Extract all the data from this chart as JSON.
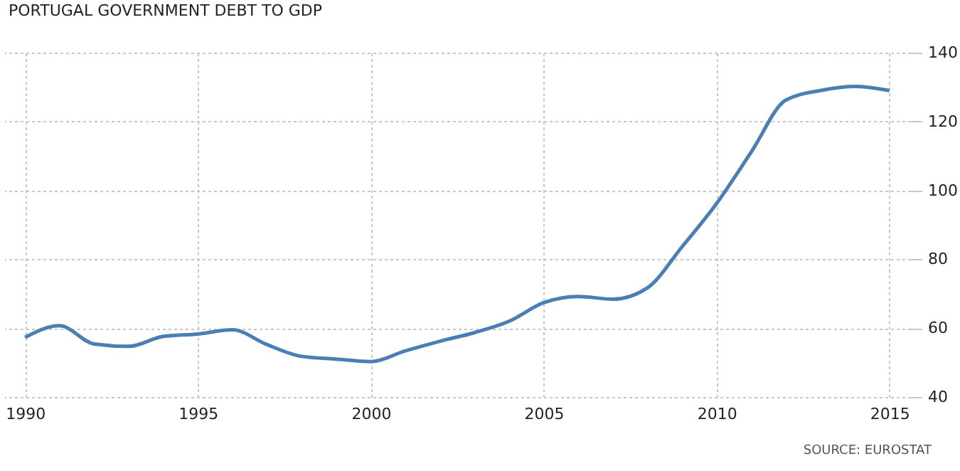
{
  "chart_data": {
    "type": "line",
    "title": "PORTUGAL GOVERNMENT DEBT TO GDP",
    "x": [
      1990,
      1991,
      1992,
      1993,
      1994,
      1995,
      1996,
      1997,
      1998,
      1999,
      2000,
      2001,
      2002,
      2003,
      2004,
      2005,
      2006,
      2007,
      2008,
      2009,
      2010,
      2011,
      2012,
      2013,
      2014,
      2015
    ],
    "series": [
      {
        "color": "#4a7fb5",
        "values": [
          57.3,
          60.7,
          55.4,
          54.7,
          57.6,
          58.3,
          59.5,
          55.2,
          51.8,
          51.0,
          50.3,
          53.4,
          56.2,
          58.7,
          62.0,
          67.4,
          69.2,
          68.4,
          71.7,
          83.6,
          96.2,
          111.1,
          126.2,
          129.0,
          130.2,
          129.0
        ]
      }
    ],
    "xlim": [
      1989.4,
      2015.6
    ],
    "xticks": [
      1990,
      1995,
      2000,
      2005,
      2010,
      2015
    ],
    "ylim": [
      40,
      140
    ],
    "yticks": [
      40,
      60,
      80,
      100,
      120,
      140
    ],
    "grid": true,
    "marker": "none",
    "line_style": "solid",
    "annotations": [
      "SOURCE: EUROSTAT"
    ]
  }
}
